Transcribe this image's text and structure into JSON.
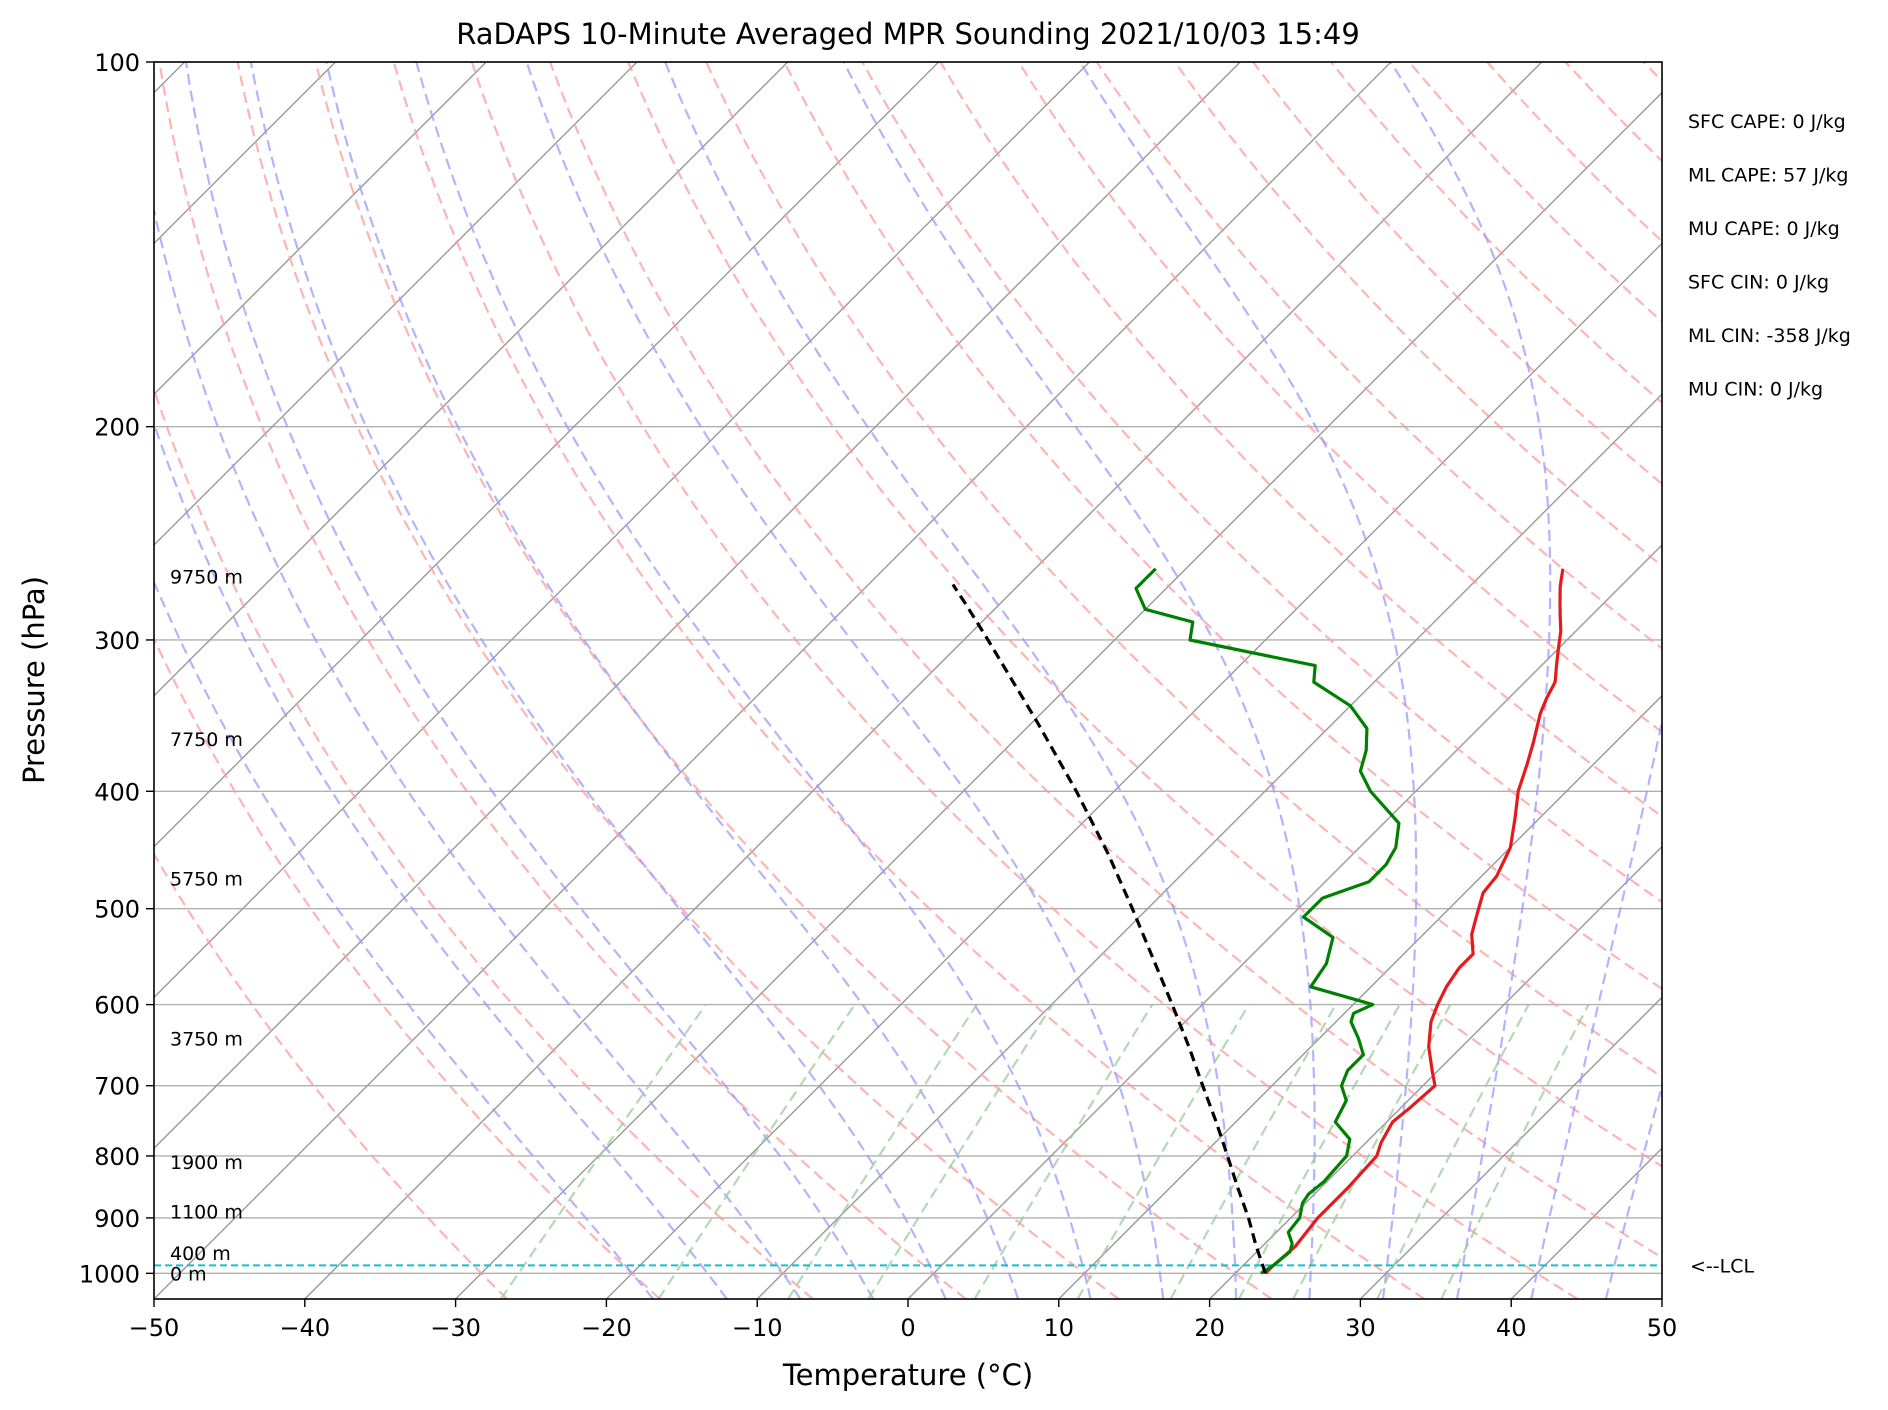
{
  "chart_data": {
    "type": "line",
    "subtype": "skew-t log-p sounding",
    "title": "RaDAPS 10-Minute Averaged MPR Sounding 2021/10/03 15:49",
    "xlabel": "Temperature (°C)",
    "ylabel": "Pressure (hPa)",
    "x_scale": "linear, skewed isotherms",
    "y_scale": "log",
    "xlim": [
      -50,
      50
    ],
    "ylim": [
      1050,
      100
    ],
    "x_ticks": [
      -50,
      -40,
      -30,
      -20,
      -10,
      0,
      10,
      20,
      30,
      40,
      50
    ],
    "x_tick_labels": [
      "−50",
      "−40",
      "−30",
      "−20",
      "−10",
      "0",
      "10",
      "20",
      "30",
      "40",
      "50"
    ],
    "y_ticks": [
      100,
      200,
      300,
      400,
      500,
      600,
      700,
      800,
      900,
      1000
    ],
    "y_tick_labels": [
      "100",
      "200",
      "300",
      "400",
      "500",
      "600",
      "700",
      "800",
      "900",
      "1000"
    ],
    "grid": true,
    "series": [
      {
        "style": "solid",
        "color": "#e41a1c",
        "points": [
          [
            1000,
            22.0
          ],
          [
            985,
            22.0
          ],
          [
            950,
            22.2
          ],
          [
            900,
            21.8
          ],
          [
            850,
            21.8
          ],
          [
            800,
            21.6
          ],
          [
            780,
            21.0
          ],
          [
            750,
            20.4
          ],
          [
            730,
            20.6
          ],
          [
            700,
            20.8
          ],
          [
            680,
            19.6
          ],
          [
            650,
            17.8
          ],
          [
            620,
            16.3
          ],
          [
            600,
            15.6
          ],
          [
            580,
            15.0
          ],
          [
            560,
            14.6
          ],
          [
            545,
            14.6
          ],
          [
            525,
            13.2
          ],
          [
            505,
            12.2
          ],
          [
            485,
            11.2
          ],
          [
            470,
            11.0
          ],
          [
            445,
            10.0
          ],
          [
            420,
            8.3
          ],
          [
            400,
            6.8
          ],
          [
            380,
            5.6
          ],
          [
            365,
            4.6
          ],
          [
            345,
            3.1
          ],
          [
            335,
            2.5
          ],
          [
            325,
            2.0
          ],
          [
            315,
            1.0
          ],
          [
            305,
            0.0
          ],
          [
            295,
            -1.0
          ],
          [
            287,
            -2.0
          ],
          [
            279,
            -3.0
          ],
          [
            271,
            -4.0
          ],
          [
            262,
            -5.0
          ]
        ]
      },
      {
        "style": "solid",
        "color": "#008000",
        "points": [
          [
            1000,
            21.7
          ],
          [
            985,
            22.0
          ],
          [
            960,
            22.2
          ],
          [
            945,
            21.8
          ],
          [
            925,
            20.8
          ],
          [
            900,
            20.6
          ],
          [
            875,
            19.8
          ],
          [
            860,
            19.6
          ],
          [
            840,
            19.8
          ],
          [
            800,
            19.6
          ],
          [
            775,
            18.7
          ],
          [
            750,
            16.6
          ],
          [
            720,
            15.9
          ],
          [
            700,
            14.6
          ],
          [
            680,
            14.0
          ],
          [
            660,
            14.0
          ],
          [
            640,
            12.6
          ],
          [
            620,
            11.0
          ],
          [
            610,
            10.6
          ],
          [
            600,
            11.3
          ],
          [
            580,
            6.0
          ],
          [
            555,
            5.5
          ],
          [
            528,
            4.2
          ],
          [
            508,
            0.9
          ],
          [
            490,
            0.9
          ],
          [
            475,
            2.9
          ],
          [
            460,
            2.9
          ],
          [
            445,
            2.4
          ],
          [
            425,
            1.0
          ],
          [
            400,
            -3.0
          ],
          [
            385,
            -5.0
          ],
          [
            370,
            -6.0
          ],
          [
            355,
            -7.4
          ],
          [
            340,
            -10.0
          ],
          [
            325,
            -14.0
          ],
          [
            315,
            -15.0
          ],
          [
            300,
            -25.0
          ],
          [
            290,
            -26.0
          ],
          [
            283,
            -30.0
          ],
          [
            272,
            -32.0
          ],
          [
            262,
            -32.0
          ]
        ]
      },
      {
        "style": "dashed",
        "color": "#000000",
        "points": [
          [
            1000,
            22.0
          ],
          [
            950,
            19.6
          ],
          [
            900,
            17.2
          ],
          [
            850,
            14.5
          ],
          [
            800,
            11.7
          ],
          [
            750,
            8.7
          ],
          [
            700,
            5.4
          ],
          [
            650,
            1.9
          ],
          [
            600,
            -2.0
          ],
          [
            550,
            -6.3
          ],
          [
            500,
            -11.0
          ],
          [
            450,
            -16.3
          ],
          [
            400,
            -22.5
          ],
          [
            350,
            -29.8
          ],
          [
            320,
            -34.8
          ],
          [
            300,
            -38.4
          ],
          [
            280,
            -42.3
          ],
          [
            270,
            -44.4
          ]
        ]
      }
    ],
    "lcl_pressure": 985,
    "lcl_label": "<--LCL",
    "height_labels": [
      {
        "pressure": 1000,
        "text": "0 m"
      },
      {
        "pressure": 962,
        "text": "400 m"
      },
      {
        "pressure": 889,
        "text": "1100 m"
      },
      {
        "pressure": 809,
        "text": "1900 m"
      },
      {
        "pressure": 640,
        "text": "3750 m"
      },
      {
        "pressure": 472,
        "text": "5750 m"
      },
      {
        "pressure": 362,
        "text": "7750 m"
      },
      {
        "pressure": 266,
        "text": "9750 m"
      }
    ],
    "indices": [
      {
        "label": "SFC CAPE: 0 J/kg"
      },
      {
        "label": "ML CAPE: 57 J/kg"
      },
      {
        "label": "MU CAPE: 0 J/kg"
      },
      {
        "label": "SFC CIN: 0 J/kg"
      },
      {
        "label": "ML CIN: -358 J/kg"
      },
      {
        "label": "MU CIN: 0 J/kg"
      }
    ],
    "background_lines": {
      "isotherms": {
        "color": "#999999",
        "style": "solid"
      },
      "dry_adiabats": {
        "color": "#ff9999",
        "style": "dashed"
      },
      "moist_adiabats": {
        "color": "#9999ff",
        "style": "dashed"
      },
      "mixing_ratio": {
        "color": "#99cc99",
        "style": "dashed"
      },
      "lcl_line": {
        "color": "#17becf",
        "style": "dashed"
      }
    }
  }
}
